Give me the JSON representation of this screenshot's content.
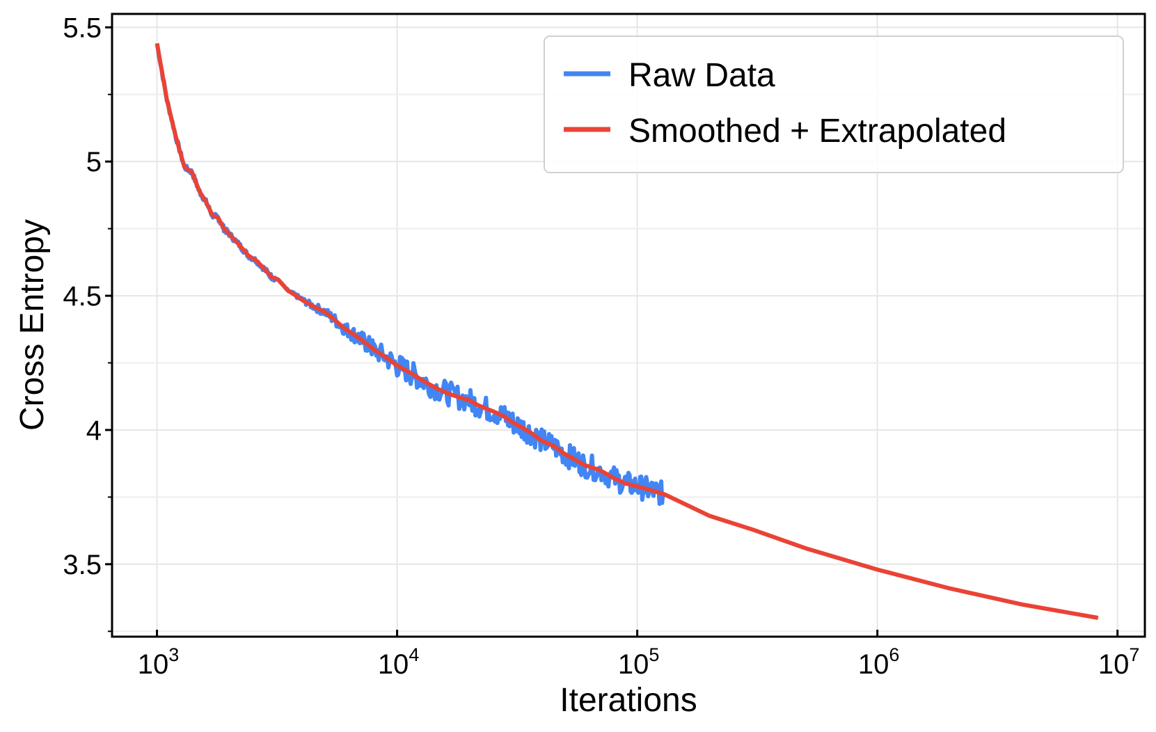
{
  "chart_data": {
    "type": "line",
    "title": "",
    "xlabel": "Iterations",
    "ylabel": "Cross Entropy",
    "xscale": "log",
    "xlim": [
      650,
      13000000
    ],
    "ylim": [
      3.23,
      5.55
    ],
    "grid": true,
    "legend_position": "top-right",
    "x_ticks": [
      {
        "value": 1000,
        "base": "10",
        "exp": "3"
      },
      {
        "value": 10000,
        "base": "10",
        "exp": "4"
      },
      {
        "value": 100000,
        "base": "10",
        "exp": "5"
      },
      {
        "value": 1000000,
        "base": "10",
        "exp": "6"
      },
      {
        "value": 10000000,
        "base": "10",
        "exp": "7"
      }
    ],
    "y_ticks": [
      {
        "value": 3.5,
        "label": "3.5"
      },
      {
        "value": 4.0,
        "label": "4"
      },
      {
        "value": 4.5,
        "label": "4.5"
      },
      {
        "value": 5.0,
        "label": "5"
      },
      {
        "value": 5.5,
        "label": "5.5"
      }
    ],
    "y_minor_ticks": [
      3.25,
      3.75,
      4.25,
      4.75,
      5.25
    ],
    "series": [
      {
        "name": "Raw Data",
        "color": "#4285f4",
        "noisy": true,
        "x": [
          1000,
          1100,
          1200,
          1300,
          1400,
          1500,
          1600,
          1700,
          1800,
          1900,
          2000,
          2200,
          2400,
          2600,
          2800,
          3000,
          3200,
          3500,
          3800,
          4100,
          4500,
          5000,
          5500,
          6000,
          6500,
          7000,
          7500,
          8000,
          9000,
          10000,
          11000,
          12000,
          13000,
          15000,
          17000,
          20000,
          22000,
          25000,
          28000,
          30000,
          33000,
          36000,
          40000,
          45000,
          50000,
          55000,
          60000,
          70000,
          80000,
          90000,
          100000,
          110000,
          120000,
          130000
        ],
        "y": [
          5.44,
          5.23,
          5.09,
          4.98,
          4.96,
          4.89,
          4.85,
          4.8,
          4.79,
          4.75,
          4.73,
          4.69,
          4.65,
          4.63,
          4.6,
          4.57,
          4.56,
          4.52,
          4.5,
          4.48,
          4.46,
          4.44,
          4.41,
          4.38,
          4.36,
          4.34,
          4.32,
          4.3,
          4.27,
          4.24,
          4.22,
          4.2,
          4.18,
          4.15,
          4.13,
          4.11,
          4.09,
          4.07,
          4.05,
          4.03,
          4.01,
          3.99,
          3.96,
          3.94,
          3.91,
          3.89,
          3.87,
          3.85,
          3.82,
          3.8,
          3.79,
          3.78,
          3.77,
          3.76
        ]
      },
      {
        "name": "Smoothed + Extrapolated",
        "color": "#ea4335",
        "noisy": false,
        "x": [
          1000,
          1100,
          1200,
          1300,
          1400,
          1500,
          1600,
          1700,
          1800,
          1900,
          2000,
          2200,
          2400,
          2600,
          2800,
          3000,
          3200,
          3500,
          3800,
          4100,
          4500,
          5000,
          5500,
          6000,
          6500,
          7000,
          7500,
          8000,
          9000,
          10000,
          11000,
          12000,
          13000,
          15000,
          17000,
          20000,
          22000,
          25000,
          28000,
          30000,
          33000,
          36000,
          40000,
          45000,
          50000,
          55000,
          60000,
          70000,
          80000,
          90000,
          100000,
          110000,
          120000,
          130000,
          200000,
          300000,
          500000,
          1000000,
          2000000,
          4000000,
          8300000
        ],
        "y": [
          5.44,
          5.23,
          5.09,
          4.98,
          4.96,
          4.89,
          4.85,
          4.8,
          4.79,
          4.75,
          4.73,
          4.69,
          4.65,
          4.63,
          4.6,
          4.57,
          4.56,
          4.52,
          4.5,
          4.48,
          4.46,
          4.44,
          4.41,
          4.38,
          4.36,
          4.34,
          4.32,
          4.3,
          4.27,
          4.24,
          4.22,
          4.2,
          4.18,
          4.15,
          4.13,
          4.11,
          4.09,
          4.07,
          4.05,
          4.03,
          4.01,
          3.99,
          3.96,
          3.94,
          3.91,
          3.89,
          3.87,
          3.85,
          3.82,
          3.8,
          3.79,
          3.78,
          3.77,
          3.76,
          3.68,
          3.63,
          3.56,
          3.48,
          3.41,
          3.35,
          3.3
        ]
      }
    ]
  }
}
